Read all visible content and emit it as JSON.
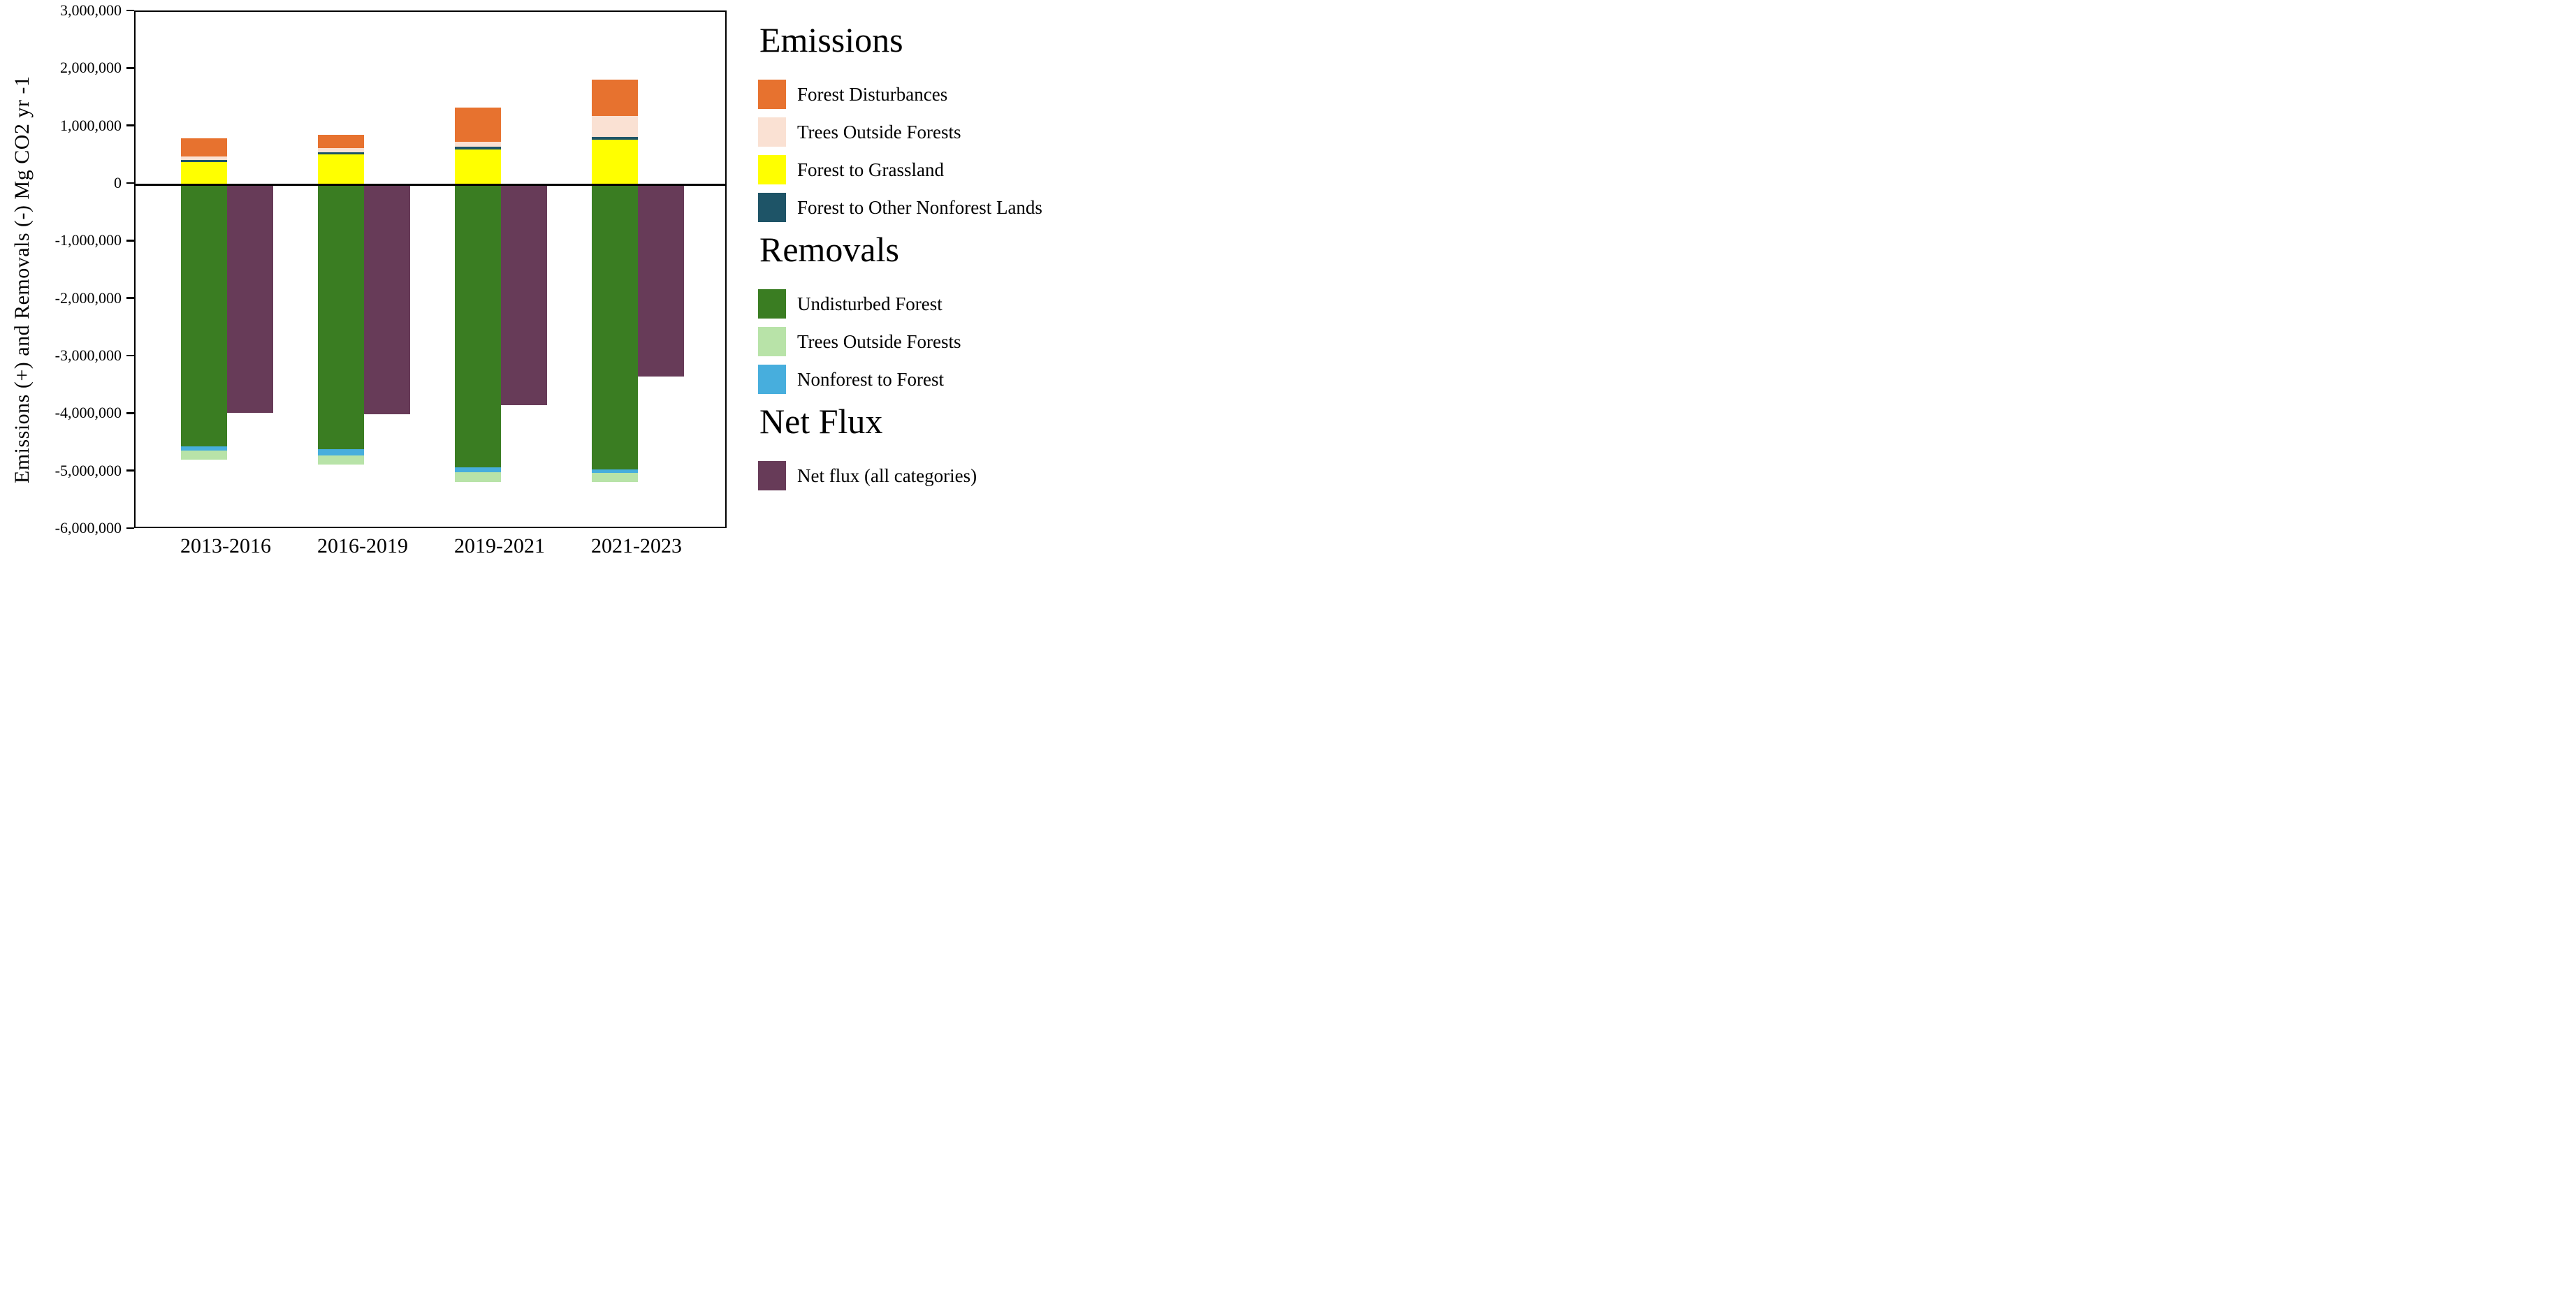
{
  "figure": {
    "y_axis_label": "Emissions (+) and Removals (-) Mg CO2 yr -1",
    "y_ticks": [
      {
        "label": "3,000,000",
        "value": 3000000
      },
      {
        "label": "2,000,000",
        "value": 2000000
      },
      {
        "label": "1,000,000",
        "value": 1000000
      },
      {
        "label": "0",
        "value": 0
      },
      {
        "label": "-1,000,000",
        "value": -1000000
      },
      {
        "label": "-2,000,000",
        "value": -2000000
      },
      {
        "label": "-3,000,000",
        "value": -3000000
      },
      {
        "label": "-4,000,000",
        "value": -4000000
      },
      {
        "label": "-5,000,000",
        "value": -5000000
      },
      {
        "label": "-6,000,000",
        "value": -6000000
      }
    ]
  },
  "chart_data": {
    "type": "bar",
    "stacked": true,
    "categories": [
      "2013-2016",
      "2016-2019",
      "2019-2021",
      "2021-2023"
    ],
    "ylabel": "Emissions (+) and Removals (-) Mg CO2 yr -1",
    "xlabel": "",
    "title": "",
    "ylim": [
      -6000000,
      3000000
    ],
    "y_tick_step": 1000000,
    "grid": false,
    "legend_position": "right",
    "series": [
      {
        "name": "Forest to Grassland",
        "group": "emissions",
        "pattern": "solid",
        "color": "#FFFF00",
        "values": [
          385000,
          520000,
          610000,
          775000
        ]
      },
      {
        "name": "Forest to Other Nonforest Lands",
        "group": "emissions",
        "pattern": "solid",
        "color": "#1E5467",
        "values": [
          45000,
          40000,
          50000,
          55000
        ]
      },
      {
        "name": "Trees Outside Forests",
        "group": "emissions",
        "pattern": "dots",
        "color": "#FAE1D3",
        "dot_color": "#C3590F",
        "values": [
          60000,
          75000,
          85000,
          355000
        ]
      },
      {
        "name": "Forest Disturbances",
        "group": "emissions",
        "pattern": "solid",
        "color": "#E7722F",
        "values": [
          315000,
          230000,
          585000,
          640000
        ]
      },
      {
        "name": "Undisturbed Forest",
        "group": "removals",
        "pattern": "solid",
        "color": "#3A7D22",
        "values": [
          -4555000,
          -4600000,
          -4920000,
          -4950000
        ]
      },
      {
        "name": "Nonforest to Forest",
        "group": "removals",
        "pattern": "solid",
        "color": "#47AEDD",
        "values": [
          -70000,
          -110000,
          -80000,
          -65000
        ]
      },
      {
        "name": "Trees Outside Forests",
        "group": "removals",
        "pattern": "dots",
        "color": "#B8E3A8",
        "dot_color": "#3F9E46",
        "values": [
          -165000,
          -165000,
          -170000,
          -155000
        ]
      },
      {
        "name": "Net flux (all categories)",
        "group": "net",
        "pattern": "solid",
        "color": "#673B58",
        "values": [
          -3975000,
          -4000000,
          -3840000,
          -3345000
        ]
      }
    ]
  },
  "legend": {
    "sections": [
      {
        "title": "Emissions",
        "items": [
          {
            "label": "Forest Disturbances",
            "swatch": "solid",
            "color": "#E7722F"
          },
          {
            "label": "Trees Outside Forests",
            "swatch": "dots",
            "color": "#FAE1D3",
            "dot_color": "#C3590F"
          },
          {
            "label": "Forest to Grassland",
            "swatch": "solid",
            "color": "#FFFF00"
          },
          {
            "label": "Forest to Other Nonforest Lands",
            "swatch": "solid",
            "color": "#1E5467"
          }
        ]
      },
      {
        "title": "Removals",
        "items": [
          {
            "label": "Undisturbed Forest",
            "swatch": "solid",
            "color": "#3A7D22"
          },
          {
            "label": "Trees Outside Forests",
            "swatch": "dots",
            "color": "#B8E3A8",
            "dot_color": "#3F9E46"
          },
          {
            "label": "Nonforest to Forest",
            "swatch": "solid",
            "color": "#47AEDD"
          }
        ]
      },
      {
        "title": "Net Flux",
        "items": [
          {
            "label": "Net flux (all categories)",
            "swatch": "solid",
            "color": "#673B58"
          }
        ]
      }
    ]
  }
}
